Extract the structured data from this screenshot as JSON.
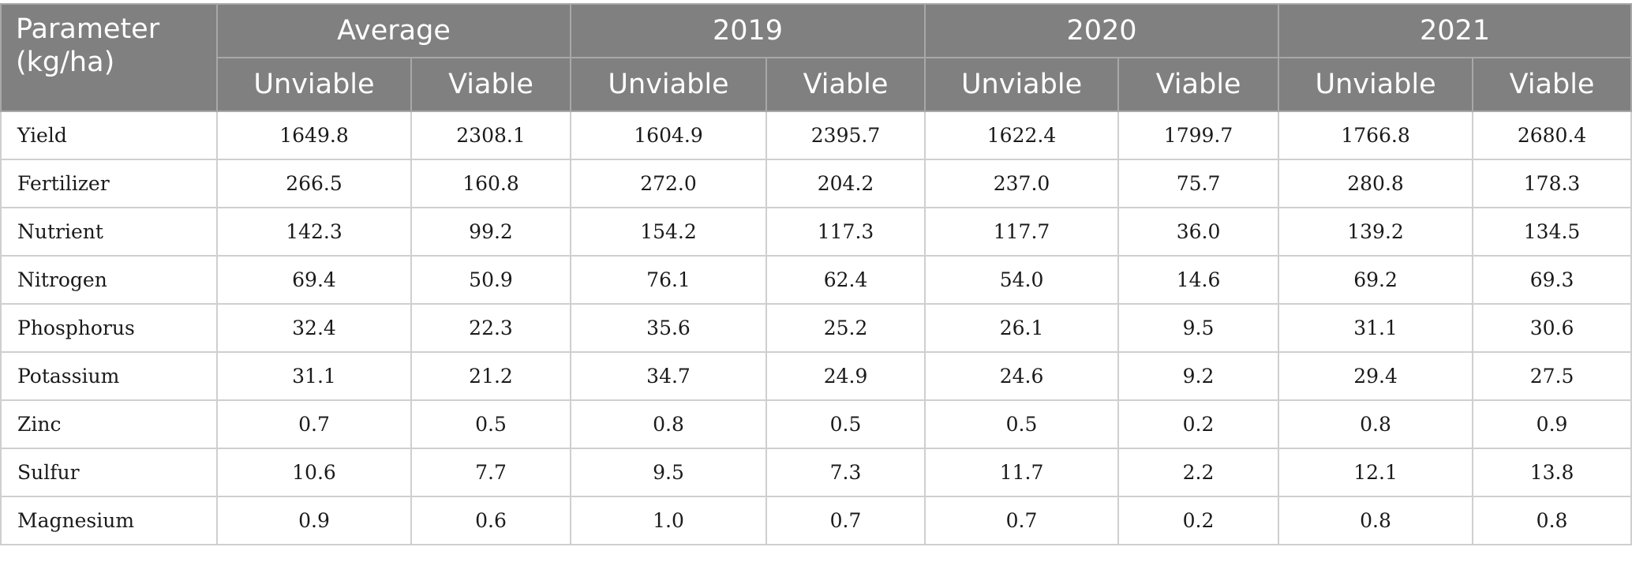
{
  "table": {
    "param_header": [
      "Parameter",
      "(kg/ha)"
    ],
    "groups": [
      "Average",
      "2019",
      "2020",
      "2021"
    ],
    "subheaders": [
      "Unviable",
      "Viable",
      "Unviable",
      "Viable",
      "Unviable",
      "Viable",
      "Unviable",
      "Viable"
    ],
    "rows": [
      {
        "label": "Yield",
        "values": [
          "1649.8",
          "2308.1",
          "1604.9",
          "2395.7",
          "1622.4",
          "1799.7",
          "1766.8",
          "2680.4"
        ]
      },
      {
        "label": "Fertilizer",
        "values": [
          "266.5",
          "160.8",
          "272.0",
          "204.2",
          "237.0",
          "75.7",
          "280.8",
          "178.3"
        ]
      },
      {
        "label": "Nutrient",
        "values": [
          "142.3",
          "99.2",
          "154.2",
          "117.3",
          "117.7",
          "36.0",
          "139.2",
          "134.5"
        ]
      },
      {
        "label": "Nitrogen",
        "values": [
          "69.4",
          "50.9",
          "76.1",
          "62.4",
          "54.0",
          "14.6",
          "69.2",
          "69.3"
        ]
      },
      {
        "label": "Phosphorus",
        "values": [
          "32.4",
          "22.3",
          "35.6",
          "25.2",
          "26.1",
          "9.5",
          "31.1",
          "30.6"
        ]
      },
      {
        "label": "Potassium",
        "values": [
          "31.1",
          "21.2",
          "34.7",
          "24.9",
          "24.6",
          "9.2",
          "29.4",
          "27.5"
        ]
      },
      {
        "label": "Zinc",
        "values": [
          "0.7",
          "0.5",
          "0.8",
          "0.5",
          "0.5",
          "0.2",
          "0.8",
          "0.9"
        ]
      },
      {
        "label": "Sulfur",
        "values": [
          "10.6",
          "7.7",
          "9.5",
          "7.3",
          "11.7",
          "2.2",
          "12.1",
          "13.8"
        ]
      },
      {
        "label": "Magnesium",
        "values": [
          "0.9",
          "0.6",
          "1.0",
          "0.7",
          "0.7",
          "0.2",
          "0.8",
          "0.8"
        ]
      }
    ]
  },
  "colors": {
    "header_background": "#7f807f",
    "header_text": "#ffffff",
    "grid_line": "#cfcfcf"
  }
}
